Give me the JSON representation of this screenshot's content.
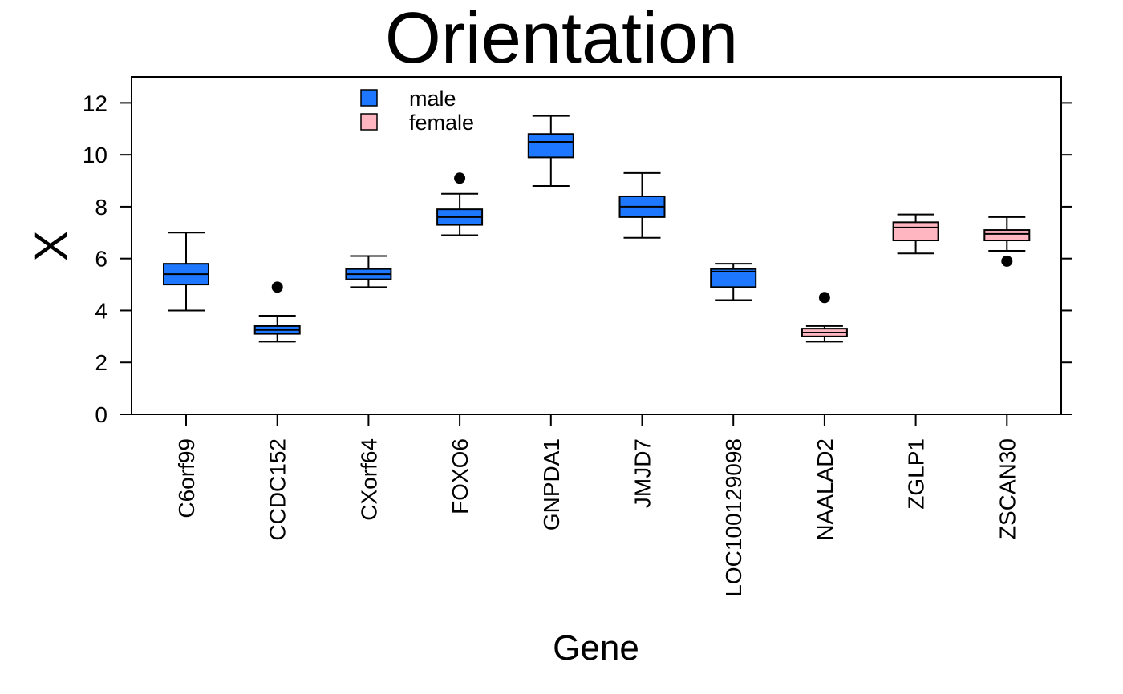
{
  "chart_data": {
    "type": "boxplot",
    "title": "Orientation",
    "xlabel": "Gene",
    "ylabel": "X",
    "ylim": [
      0,
      13
    ],
    "yticks": [
      0,
      2,
      4,
      6,
      8,
      10,
      12
    ],
    "legend": {
      "position": "top-left",
      "entries": [
        {
          "label": "male",
          "color": "#1e78ff"
        },
        {
          "label": "female",
          "color": "#ffb6c1"
        }
      ]
    },
    "categories": [
      "C6orf99",
      "CCDC152",
      "CXorf64",
      "FOXO6",
      "GNPDA1",
      "JMJD7",
      "LOC100129098",
      "NAALAD2",
      "ZGLP1",
      "ZSCAN30"
    ],
    "boxes": [
      {
        "gene": "C6orf99",
        "group": "male",
        "min": 4.0,
        "q1": 5.0,
        "median": 5.4,
        "q3": 5.8,
        "max": 7.0,
        "outliers": []
      },
      {
        "gene": "CCDC152",
        "group": "male",
        "min": 2.8,
        "q1": 3.1,
        "median": 3.25,
        "q3": 3.4,
        "max": 3.8,
        "outliers": [
          4.9
        ]
      },
      {
        "gene": "CXorf64",
        "group": "male",
        "min": 4.9,
        "q1": 5.2,
        "median": 5.4,
        "q3": 5.6,
        "max": 6.1,
        "outliers": []
      },
      {
        "gene": "FOXO6",
        "group": "male",
        "min": 6.9,
        "q1": 7.3,
        "median": 7.6,
        "q3": 7.9,
        "max": 8.5,
        "outliers": [
          9.1
        ]
      },
      {
        "gene": "GNPDA1",
        "group": "male",
        "min": 8.8,
        "q1": 9.9,
        "median": 10.5,
        "q3": 10.8,
        "max": 11.5,
        "outliers": []
      },
      {
        "gene": "JMJD7",
        "group": "male",
        "min": 6.8,
        "q1": 7.6,
        "median": 8.0,
        "q3": 8.4,
        "max": 9.3,
        "outliers": []
      },
      {
        "gene": "LOC100129098",
        "group": "male",
        "min": 4.4,
        "q1": 4.9,
        "median": 5.5,
        "q3": 5.6,
        "max": 5.8,
        "outliers": []
      },
      {
        "gene": "NAALAD2",
        "group": "female",
        "min": 2.8,
        "q1": 3.0,
        "median": 3.15,
        "q3": 3.3,
        "max": 3.4,
        "outliers": [
          4.5
        ]
      },
      {
        "gene": "ZGLP1",
        "group": "female",
        "min": 6.2,
        "q1": 6.7,
        "median": 7.2,
        "q3": 7.4,
        "max": 7.7,
        "outliers": []
      },
      {
        "gene": "ZSCAN30",
        "group": "female",
        "min": 6.3,
        "q1": 6.7,
        "median": 6.95,
        "q3": 7.1,
        "max": 7.6,
        "outliers": [
          5.9
        ]
      }
    ]
  }
}
